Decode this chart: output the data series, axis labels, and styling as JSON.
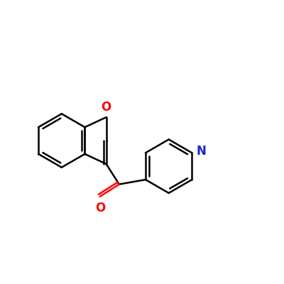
{
  "bg_color": "#ffffff",
  "bond_color": "#000000",
  "oxygen_color": "#ff0000",
  "nitrogen_color": "#2222cc",
  "carbonyl_color": "#ff0000",
  "line_width": 1.8,
  "font_size_atom": 12,
  "font_size_methyl": 10,
  "figsize": [
    4.0,
    4.0
  ],
  "dpi": 100,
  "xlim": [
    0,
    10
  ],
  "ylim": [
    0,
    10
  ]
}
